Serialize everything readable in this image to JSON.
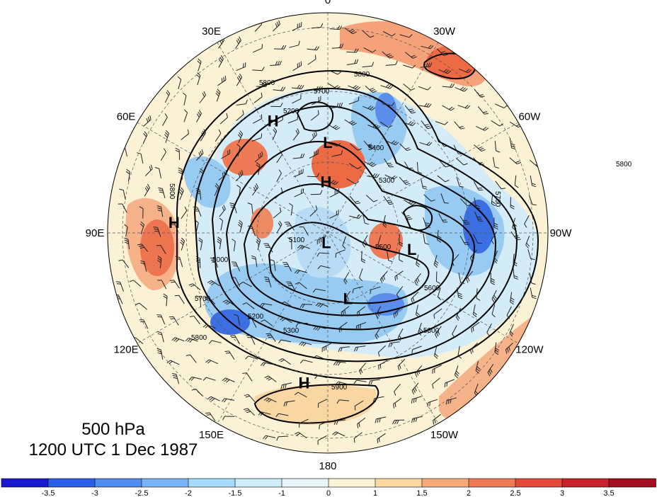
{
  "title": {
    "level": "500 hPa",
    "time": "1200 UTC 1 Dec 1987"
  },
  "projection": "north-polar-stereographic",
  "longitude_labels": [
    {
      "deg": 0,
      "text": "0"
    },
    {
      "deg": 30,
      "text": "30W"
    },
    {
      "deg": 60,
      "text": "60W"
    },
    {
      "deg": 90,
      "text": "90W"
    },
    {
      "deg": 120,
      "text": "120W"
    },
    {
      "deg": 150,
      "text": "150W"
    },
    {
      "deg": 180,
      "text": "180"
    },
    {
      "deg": 210,
      "text": "150E"
    },
    {
      "deg": 240,
      "text": "120E"
    },
    {
      "deg": 270,
      "text": "90E"
    },
    {
      "deg": 300,
      "text": "60E"
    },
    {
      "deg": 330,
      "text": "30E"
    }
  ],
  "pressure_centers": [
    {
      "type": "H",
      "lon": 334,
      "lat": 39
    },
    {
      "type": "H",
      "lon": 274,
      "lat": 27
    },
    {
      "type": "H",
      "lon": 189,
      "lat": 28
    },
    {
      "type": "H",
      "lon": 358,
      "lat": 69
    },
    {
      "type": "L",
      "lon": 0,
      "lat": 53
    },
    {
      "type": "L",
      "lon": 101,
      "lat": 55
    },
    {
      "type": "L",
      "lon": 163,
      "lat": 62
    },
    {
      "type": "L",
      "lon": 189,
      "lat": 86
    }
  ],
  "contour_labels": [
    "5800",
    "5700",
    "5600",
    "5500",
    "5400",
    "5300",
    "5200",
    "5100",
    "5000",
    "5900"
  ],
  "colorbar": {
    "ticks": [
      "-3.5",
      "-3",
      "-2.5",
      "-2",
      "-1.5",
      "-1",
      "0",
      "1",
      "1.5",
      "2",
      "2.5",
      "3",
      "3.5"
    ],
    "colors": [
      "#1919d2",
      "#2a5fe6",
      "#4f8df0",
      "#78b4f5",
      "#a6dcfa",
      "#cdeefa",
      "#e8f6fb",
      "#fbf3d6",
      "#fad8a0",
      "#f5ab78",
      "#ee7a55",
      "#e34a3a",
      "#c8202c",
      "#a30e1f"
    ]
  },
  "field_colors": {
    "neg_strong": "#3a6fe0",
    "neg": "#8ec4f3",
    "neg_light": "#cdeaf8",
    "pos_light": "#faeec9",
    "pos": "#f6c28e",
    "pos_strong": "#e9673f"
  }
}
